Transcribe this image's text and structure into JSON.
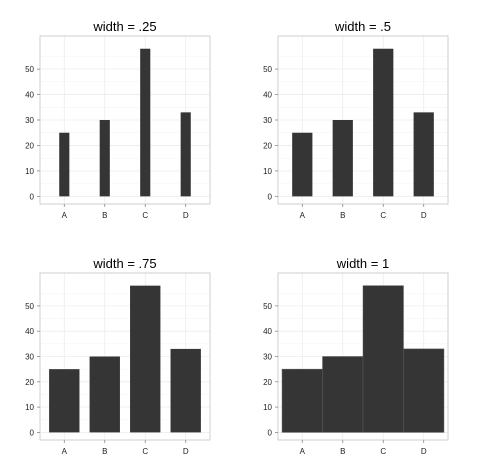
{
  "chart_data": [
    {
      "type": "bar",
      "title": "width = .25",
      "bar_width": 0.25,
      "categories": [
        "A",
        "B",
        "C",
        "D"
      ],
      "values": [
        25,
        30,
        58,
        33
      ],
      "xlabel": "",
      "ylabel": "",
      "ylim": [
        0,
        60
      ],
      "yticks": [
        0,
        10,
        20,
        30,
        40,
        50
      ],
      "grid": true,
      "bar_color": "#353535"
    },
    {
      "type": "bar",
      "title": "width = .5",
      "bar_width": 0.5,
      "categories": [
        "A",
        "B",
        "C",
        "D"
      ],
      "values": [
        25,
        30,
        58,
        33
      ],
      "xlabel": "",
      "ylabel": "",
      "ylim": [
        0,
        60
      ],
      "yticks": [
        0,
        10,
        20,
        30,
        40,
        50
      ],
      "grid": true,
      "bar_color": "#353535"
    },
    {
      "type": "bar",
      "title": "width = .75",
      "bar_width": 0.75,
      "categories": [
        "A",
        "B",
        "C",
        "D"
      ],
      "values": [
        25,
        30,
        58,
        33
      ],
      "xlabel": "",
      "ylabel": "",
      "ylim": [
        0,
        60
      ],
      "yticks": [
        0,
        10,
        20,
        30,
        40,
        50
      ],
      "grid": true,
      "bar_color": "#353535"
    },
    {
      "type": "bar",
      "title": "width = 1",
      "bar_width": 1,
      "categories": [
        "A",
        "B",
        "C",
        "D"
      ],
      "values": [
        25,
        30,
        58,
        33
      ],
      "xlabel": "",
      "ylabel": "",
      "ylim": [
        0,
        60
      ],
      "yticks": [
        0,
        10,
        20,
        30,
        40,
        50
      ],
      "grid": true,
      "bar_color": "#353535"
    }
  ],
  "colors": {
    "panel_border": "#cfcfcf",
    "grid": "#ececec",
    "bar_edge": "#5a5a5a",
    "axis_tick": "#8a8a8a"
  }
}
